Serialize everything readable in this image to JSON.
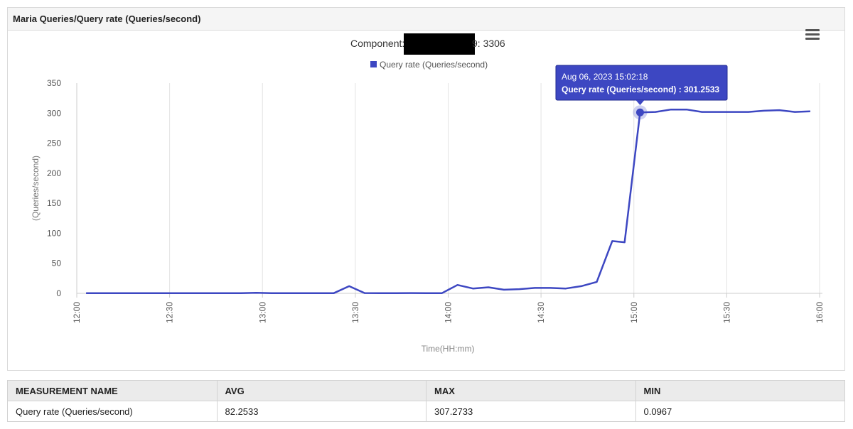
{
  "panel": {
    "title": "Maria Queries/Query rate (Queries/second)",
    "menu_icon": "hamburger-menu-icon"
  },
  "chart_data": {
    "type": "line",
    "title_prefix": "Component:",
    "title_suffix": "9: 3306",
    "legend": [
      "Query rate (Queries/second)"
    ],
    "legend_position": "top-center",
    "ylabel": "(Queries/second)",
    "xlabel": "Time(HH:mm)",
    "ylim": [
      0,
      350
    ],
    "yticks": [
      "0",
      "50",
      "100",
      "150",
      "200",
      "250",
      "300",
      "350"
    ],
    "xticks": [
      "12:00",
      "12:30",
      "13:00",
      "13:30",
      "14:00",
      "14:30",
      "15:00",
      "15:30",
      "16:00"
    ],
    "grid": "vertical",
    "series": [
      {
        "name": "Query rate (Queries/second)",
        "color": "#3d47c2",
        "x": [
          "12:03",
          "12:08",
          "12:13",
          "12:18",
          "12:23",
          "12:28",
          "12:33",
          "12:38",
          "12:43",
          "12:48",
          "12:53",
          "12:58",
          "13:03",
          "13:08",
          "13:13",
          "13:18",
          "13:23",
          "13:28",
          "13:33",
          "13:38",
          "13:43",
          "13:48",
          "13:53",
          "13:58",
          "14:03",
          "14:08",
          "14:13",
          "14:18",
          "14:23",
          "14:28",
          "14:33",
          "14:38",
          "14:43",
          "14:48",
          "14:53",
          "14:57",
          "15:02",
          "15:07",
          "15:12",
          "15:17",
          "15:22",
          "15:27",
          "15:32",
          "15:37",
          "15:42",
          "15:47",
          "15:52",
          "15:57"
        ],
        "values": [
          0.2,
          0.2,
          0.2,
          0.2,
          0.2,
          0.2,
          0.2,
          0.2,
          0.2,
          0.2,
          0.3,
          1,
          0.2,
          0.2,
          0.2,
          0.2,
          0.2,
          12,
          0.5,
          0.2,
          0.3,
          0.5,
          0.3,
          0.3,
          14,
          8,
          10,
          6,
          7,
          9,
          9,
          8,
          12,
          19,
          87,
          85,
          301.2533,
          302,
          306,
          306,
          302,
          302,
          302,
          302,
          304,
          305,
          302,
          303
        ]
      }
    ],
    "tooltip": {
      "date": "Aug 06, 2023 15:02:18",
      "text": "Query rate (Queries/second) : 301.2533",
      "point_index": 36
    }
  },
  "stats_table": {
    "headers": [
      "MEASUREMENT NAME",
      "AVG",
      "MAX",
      "MIN"
    ],
    "rows": [
      [
        "Query rate (Queries/second)",
        "82.2533",
        "307.2733",
        "0.0967"
      ]
    ]
  }
}
